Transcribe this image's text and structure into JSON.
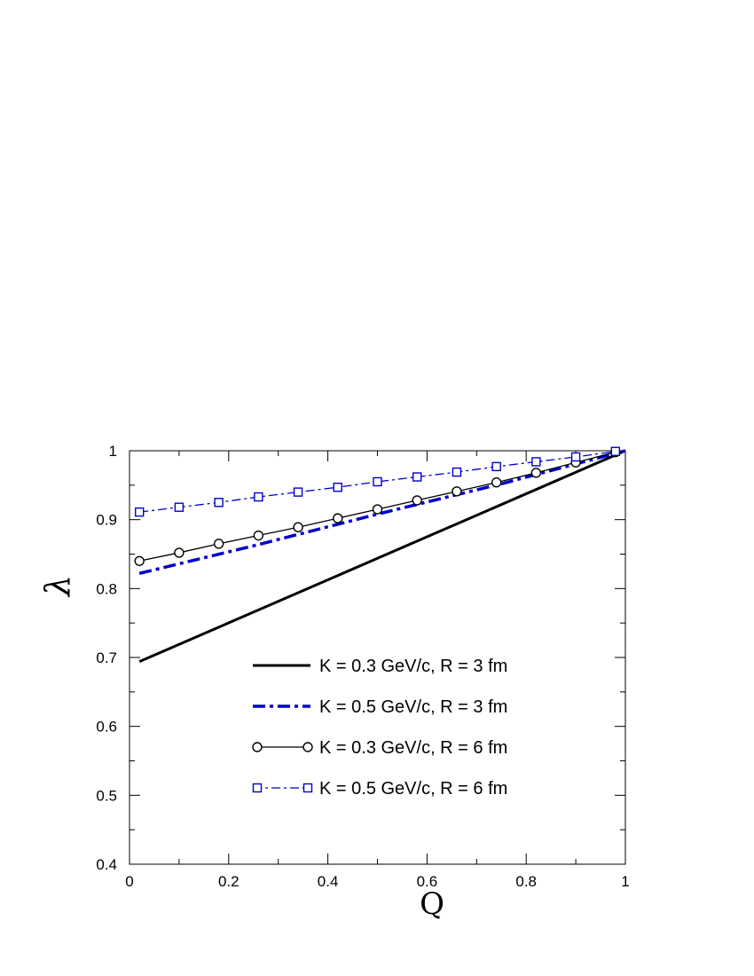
{
  "chart_data": {
    "type": "line",
    "title": "",
    "xlabel": "Q",
    "ylabel": "λ",
    "xlim": [
      0,
      1
    ],
    "ylim": [
      0.4,
      1
    ],
    "x_ticks": [
      "0",
      "0.2",
      "0.4",
      "0.6",
      "0.8",
      "1"
    ],
    "y_ticks": [
      "0.4",
      "0.5",
      "0.6",
      "0.7",
      "0.8",
      "0.9",
      "1"
    ],
    "grid": false,
    "legend_position": "center-right",
    "series": [
      {
        "name": "K = 0.3 GeV/c, R = 3 fm",
        "color": "#000000",
        "style": "solid-thick",
        "marker": "none",
        "x": [
          0.02,
          1.0
        ],
        "y": [
          0.694,
          1.0
        ]
      },
      {
        "name": "K = 0.5 GeV/c, R = 3 fm",
        "color": "#0000cc",
        "style": "dashdot-thick",
        "marker": "none",
        "x": [
          0.02,
          0.25,
          0.5,
          0.75,
          1.0
        ],
        "y": [
          0.822,
          0.862,
          0.908,
          0.952,
          1.0
        ]
      },
      {
        "name": "K = 0.3 GeV/c, R = 6 fm",
        "color": "#000000",
        "style": "solid-thin",
        "marker": "circle",
        "x": [
          0.02,
          0.1,
          0.18,
          0.26,
          0.34,
          0.42,
          0.5,
          0.58,
          0.66,
          0.74,
          0.82,
          0.9,
          0.98
        ],
        "y": [
          0.84,
          0.852,
          0.865,
          0.877,
          0.889,
          0.902,
          0.915,
          0.928,
          0.941,
          0.954,
          0.968,
          0.983,
          0.998
        ]
      },
      {
        "name": "K = 0.5 GeV/c, R = 6 fm",
        "color": "#0000cc",
        "style": "dashdot-thin",
        "marker": "square",
        "x": [
          0.02,
          0.1,
          0.18,
          0.26,
          0.34,
          0.42,
          0.5,
          0.58,
          0.66,
          0.74,
          0.82,
          0.9,
          0.98
        ],
        "y": [
          0.911,
          0.918,
          0.925,
          0.933,
          0.94,
          0.947,
          0.955,
          0.962,
          0.969,
          0.977,
          0.984,
          0.991,
          0.999
        ]
      }
    ]
  }
}
